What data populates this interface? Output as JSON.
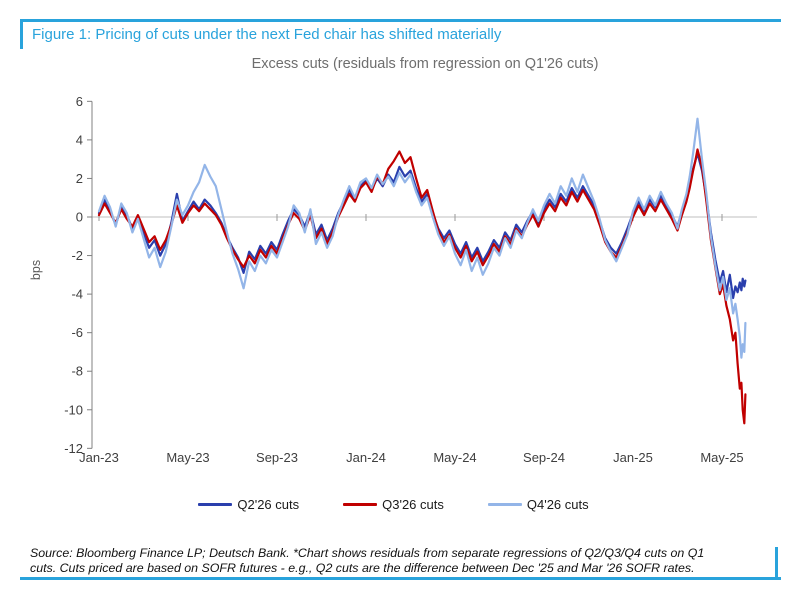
{
  "accent_color": "#29a3dc",
  "header": {
    "title": "Figure 1: Pricing of cuts under the next Fed chair has shifted materially"
  },
  "footer": {
    "lines": [
      "Source: Bloomberg Finance LP; Deutsch Bank. *Chart shows residuals from separate regressions of Q2/Q3/Q4 cuts on Q1",
      "cuts. Cuts priced are based on SOFR futures - e.g., Q2 cuts are the difference between Dec '25 and Mar '26 SOFR rates."
    ]
  },
  "chart_data": {
    "type": "line",
    "title": "Excess cuts (residuals from regression on Q1'26 cuts)",
    "ylabel": "bps",
    "ylim": [
      -12,
      6
    ],
    "yticks": [
      6,
      4,
      2,
      0,
      -2,
      -4,
      -6,
      -8,
      -10,
      -12
    ],
    "grid": "zero-line-only",
    "legend_position": "bottom",
    "x_unit": "months since Jan-2023",
    "xticks": [
      {
        "label": "Jan-23",
        "m": 0
      },
      {
        "label": "May-23",
        "m": 4
      },
      {
        "label": "Sep-23",
        "m": 8
      },
      {
        "label": "Jan-24",
        "m": 12
      },
      {
        "label": "May-24",
        "m": 16
      },
      {
        "label": "Sep-24",
        "m": 20
      },
      {
        "label": "Jan-25",
        "m": 24
      },
      {
        "label": "May-25",
        "m": 28
      }
    ],
    "x": [
      0,
      0.25,
      0.5,
      0.75,
      1,
      1.25,
      1.5,
      1.75,
      2,
      2.25,
      2.5,
      2.75,
      3,
      3.25,
      3.5,
      3.75,
      4,
      4.25,
      4.5,
      4.75,
      5,
      5.25,
      5.5,
      5.75,
      6,
      6.25,
      6.5,
      6.75,
      7,
      7.25,
      7.5,
      7.75,
      8,
      8.25,
      8.5,
      8.75,
      9,
      9.25,
      9.5,
      9.75,
      10,
      10.25,
      10.5,
      10.75,
      11,
      11.25,
      11.5,
      11.75,
      12,
      12.25,
      12.5,
      12.75,
      13,
      13.25,
      13.5,
      13.75,
      14,
      14.25,
      14.5,
      14.75,
      15,
      15.25,
      15.5,
      15.75,
      16,
      16.25,
      16.5,
      16.75,
      17,
      17.25,
      17.5,
      17.75,
      18,
      18.25,
      18.5,
      18.75,
      19,
      19.25,
      19.5,
      19.75,
      20,
      20.25,
      20.5,
      20.75,
      21,
      21.25,
      21.5,
      21.75,
      22,
      22.25,
      22.5,
      22.75,
      23,
      23.25,
      23.5,
      23.75,
      24,
      24.25,
      24.5,
      24.75,
      25,
      25.25,
      25.5,
      25.75,
      26,
      26.2,
      26.4,
      26.55,
      26.7,
      26.8,
      26.9,
      27.1,
      27.3,
      27.5,
      27.7,
      27.9,
      28.05,
      28.2,
      28.35,
      28.5,
      28.6,
      28.7,
      28.8,
      28.87,
      28.93,
      29,
      29.05
    ],
    "series": [
      {
        "name": "Q2'26 cuts",
        "color": "#2a3fad",
        "values": [
          0.2,
          0.9,
          0.3,
          -0.4,
          0.5,
          0.1,
          -0.6,
          0,
          -0.8,
          -1.6,
          -1.2,
          -2,
          -1.4,
          -0.3,
          1.2,
          -0.2,
          0.3,
          0.8,
          0.4,
          0.9,
          0.6,
          0.2,
          -0.3,
          -1,
          -1.6,
          -2.1,
          -2.9,
          -1.8,
          -2.2,
          -1.5,
          -1.9,
          -1.3,
          -1.7,
          -0.9,
          -0.2,
          0.4,
          0.1,
          -0.5,
          0.3,
          -0.9,
          -0.4,
          -1.2,
          -0.6,
          0.2,
          0.8,
          1.4,
          0.9,
          1.6,
          1.9,
          1.4,
          2,
          1.6,
          2.2,
          1.8,
          2.6,
          2.1,
          2.4,
          1.5,
          0.8,
          1.2,
          0.2,
          -0.6,
          -1.1,
          -0.7,
          -1.4,
          -1.9,
          -1.3,
          -2.1,
          -1.6,
          -2.3,
          -1.8,
          -1.2,
          -1.6,
          -0.8,
          -1.2,
          -0.4,
          -0.8,
          -0.2,
          0.3,
          -0.3,
          0.4,
          0.9,
          0.5,
          1.2,
          0.8,
          1.5,
          1,
          1.6,
          1.1,
          0.6,
          -0.2,
          -1.1,
          -1.6,
          -1.9,
          -1.3,
          -0.6,
          0.2,
          0.8,
          0.3,
          0.9,
          0.5,
          1.1,
          0.6,
          0.1,
          -0.5,
          0.3,
          1,
          1.7,
          2.5,
          2.9,
          3.3,
          2.4,
          1,
          -0.8,
          -2.2,
          -3.4,
          -2.8,
          -3.9,
          -3,
          -4.2,
          -3.6,
          -3.9,
          -3.4,
          -3.8,
          -3.2,
          -3.6,
          -3.3
        ]
      },
      {
        "name": "Q3'26 cuts",
        "color": "#c00000",
        "values": [
          0.1,
          0.7,
          0.2,
          -0.3,
          0.4,
          -0.1,
          -0.5,
          0.1,
          -0.6,
          -1.3,
          -1,
          -1.7,
          -1.2,
          -0.4,
          0.6,
          -0.3,
          0.2,
          0.6,
          0.3,
          0.7,
          0.4,
          0.1,
          -0.4,
          -1.1,
          -1.7,
          -2.2,
          -2.6,
          -2,
          -2.4,
          -1.7,
          -2.1,
          -1.5,
          -1.9,
          -1.1,
          -0.4,
          0.2,
          -0.1,
          -0.7,
          0.1,
          -1.1,
          -0.6,
          -1.4,
          -0.8,
          0,
          0.6,
          1.2,
          0.8,
          1.5,
          1.8,
          1.3,
          2.1,
          1.7,
          2.5,
          2.9,
          3.4,
          2.8,
          3.1,
          2,
          1,
          1.4,
          0.3,
          -0.7,
          -1.3,
          -0.9,
          -1.6,
          -2.1,
          -1.5,
          -2.3,
          -1.8,
          -2.5,
          -2,
          -1.4,
          -1.8,
          -1,
          -1.4,
          -0.6,
          -1,
          -0.4,
          0.1,
          -0.5,
          0.2,
          0.7,
          0.3,
          1,
          0.6,
          1.3,
          0.8,
          1.4,
          0.9,
          0.4,
          -0.4,
          -1.3,
          -1.8,
          -2.1,
          -1.5,
          -0.8,
          0,
          0.6,
          0.1,
          0.7,
          0.3,
          0.9,
          0.4,
          -0.1,
          -0.7,
          0.1,
          0.8,
          1.5,
          2.4,
          2.9,
          3.5,
          2.6,
          0.8,
          -1.2,
          -2.6,
          -4,
          -3.5,
          -4.6,
          -5.3,
          -6.4,
          -6,
          -7.6,
          -8.9,
          -8.6,
          -10,
          -10.7,
          -9.2
        ]
      },
      {
        "name": "Q4'26 cuts",
        "color": "#93b5e8",
        "values": [
          0.3,
          1.1,
          0.5,
          -0.5,
          0.7,
          0.2,
          -0.8,
          -0.1,
          -1.1,
          -2.1,
          -1.6,
          -2.6,
          -1.8,
          -0.5,
          0.9,
          0.1,
          0.6,
          1.3,
          1.8,
          2.7,
          2.1,
          1.6,
          0.4,
          -0.8,
          -1.9,
          -2.7,
          -3.7,
          -2.3,
          -2.8,
          -2,
          -2.4,
          -1.7,
          -2.1,
          -1.3,
          -0.5,
          0.6,
          0.2,
          -0.8,
          0.4,
          -1.4,
          -0.8,
          -1.6,
          -1,
          0.1,
          0.9,
          1.6,
          1,
          1.8,
          2,
          1.5,
          2.2,
          1.7,
          2.1,
          1.6,
          2.3,
          1.8,
          2.2,
          1.3,
          0.6,
          1,
          0,
          -0.9,
          -1.5,
          -1,
          -1.9,
          -2.5,
          -1.7,
          -2.8,
          -2.1,
          -3,
          -2.4,
          -1.6,
          -2,
          -1.1,
          -1.6,
          -0.7,
          -1.1,
          -0.3,
          0.4,
          -0.2,
          0.6,
          1.2,
          0.7,
          1.6,
          1.1,
          2,
          1.3,
          2.2,
          1.5,
          0.8,
          -0.1,
          -1.2,
          -1.8,
          -2.3,
          -1.6,
          -0.9,
          0.3,
          1,
          0.4,
          1.1,
          0.6,
          1.3,
          0.7,
          0.2,
          -0.6,
          0.4,
          1.2,
          2.1,
          3.3,
          4.2,
          5.1,
          3,
          1.2,
          -1,
          -2.5,
          -3.8,
          -3.1,
          -4.3,
          -3.7,
          -5,
          -4.5,
          -5.3,
          -6.2,
          -7.3,
          -6.6,
          -7,
          -5.5
        ]
      }
    ]
  }
}
